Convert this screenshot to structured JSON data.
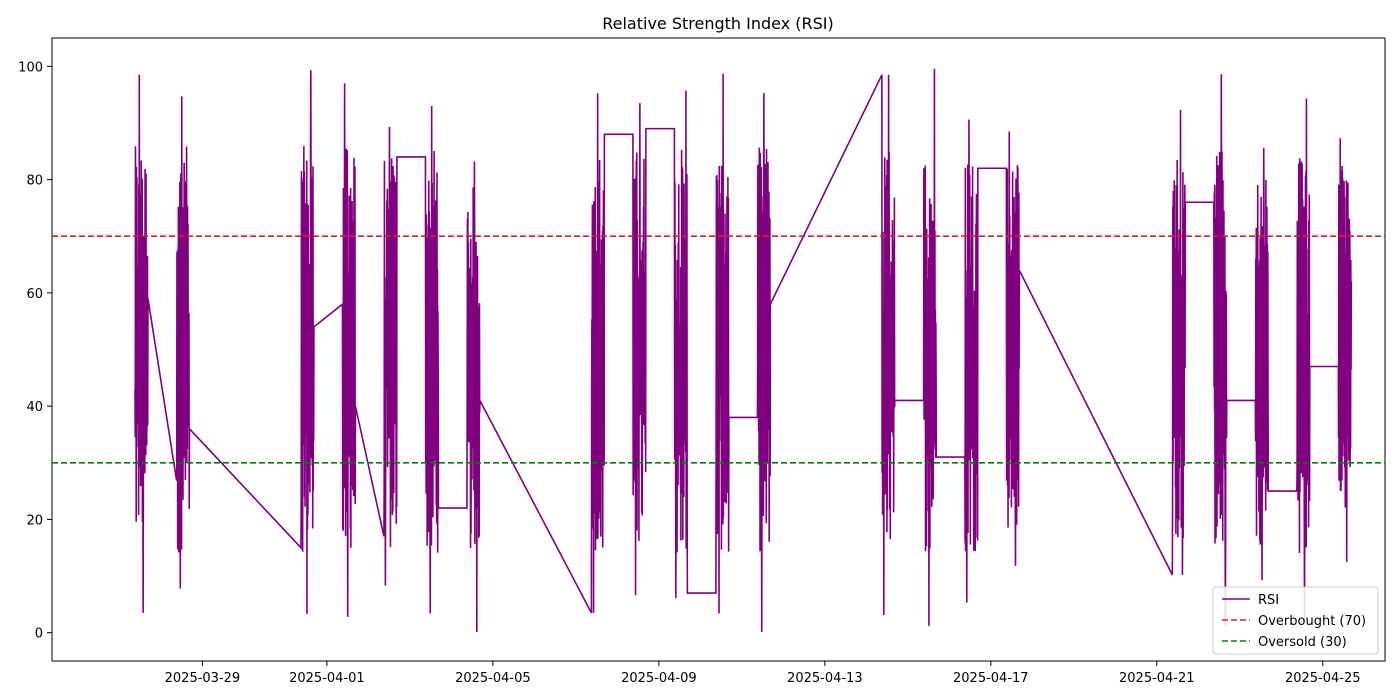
{
  "chart_data": {
    "type": "line",
    "title": "Relative Strength Index (RSI)",
    "xlabel": "",
    "ylabel": "",
    "x_axis": {
      "type": "date",
      "range": [
        "2025-03-25T09:00",
        "2025-04-26T12:00"
      ],
      "ticks": [
        "2025-03-29",
        "2025-04-01",
        "2025-04-05",
        "2025-04-09",
        "2025-04-13",
        "2025-04-17",
        "2025-04-21",
        "2025-04-25"
      ],
      "tick_labels": [
        "2025-03-29",
        "2025-04-01",
        "2025-04-05",
        "2025-04-09",
        "2025-04-13",
        "2025-04-17",
        "2025-04-21",
        "2025-04-25"
      ]
    },
    "y_axis": {
      "range": [
        -5,
        105
      ],
      "ticks": [
        0,
        20,
        40,
        60,
        80,
        100
      ],
      "tick_labels": [
        "0",
        "20",
        "40",
        "60",
        "80",
        "100"
      ]
    },
    "grid": false,
    "legend": {
      "position": "bottom-right",
      "entries": [
        {
          "label": "RSI",
          "color": "#800080",
          "style": "solid"
        },
        {
          "label": "Overbought (70)",
          "color": "#e41a1c",
          "style": "dashed"
        },
        {
          "label": "Oversold (30)",
          "color": "#008000",
          "style": "dashed"
        }
      ]
    },
    "series": [
      {
        "name": "RSI",
        "color": "#800080",
        "style": "solid",
        "description": "Hourly RSI values during trading sessions; oscillates roughly between 0 and 100 each session, with straight connecting lines across non-trading gaps",
        "sessions": [
          {
            "start": "2025-03-27T09:00",
            "end": "2025-03-27T16:30",
            "min": 3.5,
            "max": 98.5,
            "first": 43,
            "last": 59
          },
          {
            "start": "2025-03-28T09:00",
            "end": "2025-03-28T16:30",
            "min": 7.8,
            "max": 94.7,
            "first": 27,
            "last": 36
          },
          {
            "start": "2025-03-31T09:00",
            "end": "2025-03-31T16:30",
            "min": 3.3,
            "max": 99.3,
            "first": 15,
            "last": 54
          },
          {
            "start": "2025-04-01T09:00",
            "end": "2025-04-01T16:30",
            "min": 2.8,
            "max": 97.0,
            "first": 58,
            "last": 40
          },
          {
            "start": "2025-04-02T09:00",
            "end": "2025-04-02T16:30",
            "min": 8.3,
            "max": 89.3,
            "first": 17,
            "last": 84
          },
          {
            "start": "2025-04-03T09:00",
            "end": "2025-04-03T16:30",
            "min": 3.4,
            "max": 93.0,
            "first": 84,
            "last": 22
          },
          {
            "start": "2025-04-04T09:00",
            "end": "2025-04-04T16:30",
            "min": 0.1,
            "max": 83.2,
            "first": 22,
            "last": 41
          },
          {
            "start": "2025-04-07T09:00",
            "end": "2025-04-07T16:30",
            "min": 3.5,
            "max": 95.2,
            "first": 3.5,
            "last": 88
          },
          {
            "start": "2025-04-08T09:00",
            "end": "2025-04-08T16:30",
            "min": 6.6,
            "max": 93.5,
            "first": 88,
            "last": 89
          },
          {
            "start": "2025-04-09T09:00",
            "end": "2025-04-09T16:30",
            "min": 6.1,
            "max": 95.7,
            "first": 89,
            "last": 7
          },
          {
            "start": "2025-04-10T09:00",
            "end": "2025-04-10T16:30",
            "min": 3.4,
            "max": 98.7,
            "first": 7,
            "last": 38
          },
          {
            "start": "2025-04-11T09:00",
            "end": "2025-04-11T16:30",
            "min": 0.1,
            "max": 95.3,
            "first": 38,
            "last": 58
          },
          {
            "start": "2025-04-14T09:00",
            "end": "2025-04-14T16:30",
            "min": 3.1,
            "max": 98.5,
            "first": 98.5,
            "last": 41
          },
          {
            "start": "2025-04-15T09:00",
            "end": "2025-04-15T16:30",
            "min": 1.2,
            "max": 99.6,
            "first": 41,
            "last": 31
          },
          {
            "start": "2025-04-16T09:00",
            "end": "2025-04-16T16:30",
            "min": 5.3,
            "max": 90.6,
            "first": 31,
            "last": 82
          },
          {
            "start": "2025-04-17T09:00",
            "end": "2025-04-17T16:30",
            "min": 11.8,
            "max": 88.5,
            "first": 82,
            "last": 64
          },
          {
            "start": "2025-04-21T09:00",
            "end": "2025-04-21T16:30",
            "min": 10.2,
            "max": 92.3,
            "first": 10.2,
            "last": 76
          },
          {
            "start": "2025-04-22T09:00",
            "end": "2025-04-22T16:30",
            "min": 1.3,
            "max": 98.6,
            "first": 76,
            "last": 41
          },
          {
            "start": "2025-04-23T09:00",
            "end": "2025-04-23T16:30",
            "min": 9.3,
            "max": 85.6,
            "first": 41,
            "last": 25
          },
          {
            "start": "2025-04-24T09:00",
            "end": "2025-04-24T16:30",
            "min": 2.0,
            "max": 94.3,
            "first": 25,
            "last": 47
          },
          {
            "start": "2025-04-25T09:00",
            "end": "2025-04-25T16:30",
            "min": 12.5,
            "max": 87.3,
            "first": 47,
            "last": 62
          }
        ]
      },
      {
        "name": "Overbought (70)",
        "color": "#e41a1c",
        "style": "dashed",
        "constant": 70
      },
      {
        "name": "Oversold (30)",
        "color": "#008000",
        "style": "dashed",
        "constant": 30
      }
    ]
  }
}
